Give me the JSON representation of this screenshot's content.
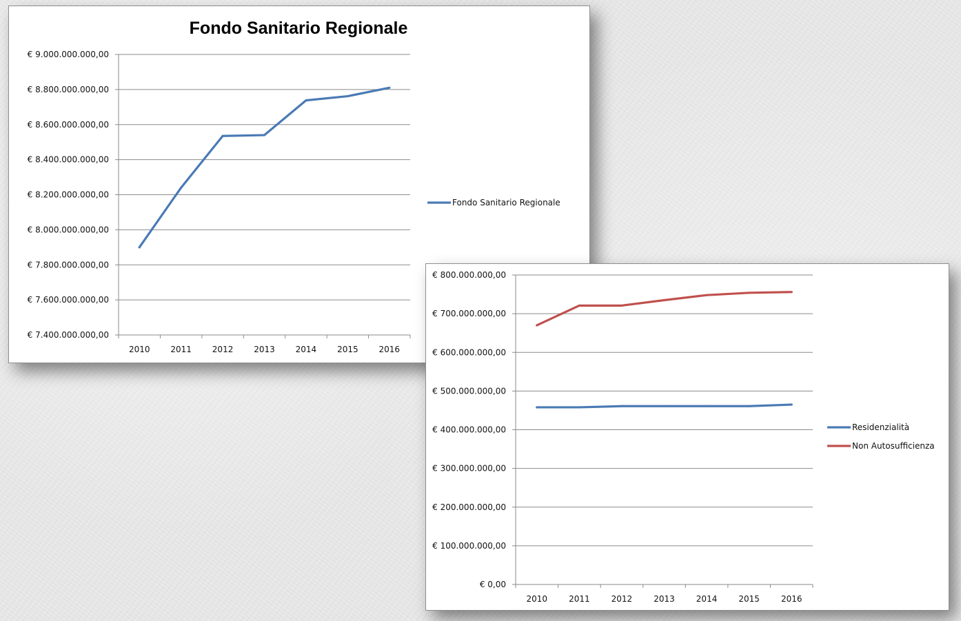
{
  "charts": [
    {
      "chart_data": {
        "type": "line",
        "title": "Fondo Sanitario Regionale",
        "xlabel": "",
        "ylabel": "",
        "categories": [
          "2010",
          "2011",
          "2012",
          "2013",
          "2014",
          "2015",
          "2016"
        ],
        "ylim": [
          7400000000,
          9000000000
        ],
        "yticks": [
          7400000000,
          7600000000,
          7800000000,
          8000000000,
          8200000000,
          8400000000,
          8600000000,
          8800000000,
          9000000000
        ],
        "ytick_labels": [
          "€ 7.400.000.000,00",
          "€ 7.600.000.000,00",
          "€ 7.800.000.000,00",
          "€ 8.000.000.000,00",
          "€ 8.200.000.000,00",
          "€ 8.400.000.000,00",
          "€ 8.600.000.000,00",
          "€ 8.800.000.000,00",
          "€ 9.000.000.000,00"
        ],
        "grid": true,
        "legend_position": "right",
        "series": [
          {
            "name": "Fondo Sanitario Regionale",
            "color": "#4a7ab5",
            "values": [
              7900000000,
              8240000000,
              8535000000,
              8540000000,
              8738000000,
              8762000000,
              8810000000
            ]
          }
        ]
      }
    },
    {
      "chart_data": {
        "type": "line",
        "title": "",
        "xlabel": "",
        "ylabel": "",
        "categories": [
          "2010",
          "2011",
          "2012",
          "2013",
          "2014",
          "2015",
          "2016"
        ],
        "ylim": [
          0,
          800000000
        ],
        "yticks": [
          0,
          100000000,
          200000000,
          300000000,
          400000000,
          500000000,
          600000000,
          700000000,
          800000000
        ],
        "ytick_labels": [
          "€ 0,00",
          "€ 100.000.000,00",
          "€ 200.000.000,00",
          "€ 300.000.000,00",
          "€ 400.000.000,00",
          "€ 500.000.000,00",
          "€ 600.000.000,00",
          "€ 700.000.000,00",
          "€ 800.000.000,00"
        ],
        "grid": true,
        "legend_position": "right",
        "series": [
          {
            "name": "Residenzialità",
            "color": "#4a7ab5",
            "values": [
              458000000,
              458000000,
              461000000,
              461000000,
              461000000,
              461000000,
              465000000
            ]
          },
          {
            "name": "Non Autosufficienza",
            "color": "#c0504d",
            "values": [
              670000000,
              721000000,
              721000000,
              735000000,
              748000000,
              754000000,
              756000000
            ]
          }
        ]
      }
    }
  ]
}
